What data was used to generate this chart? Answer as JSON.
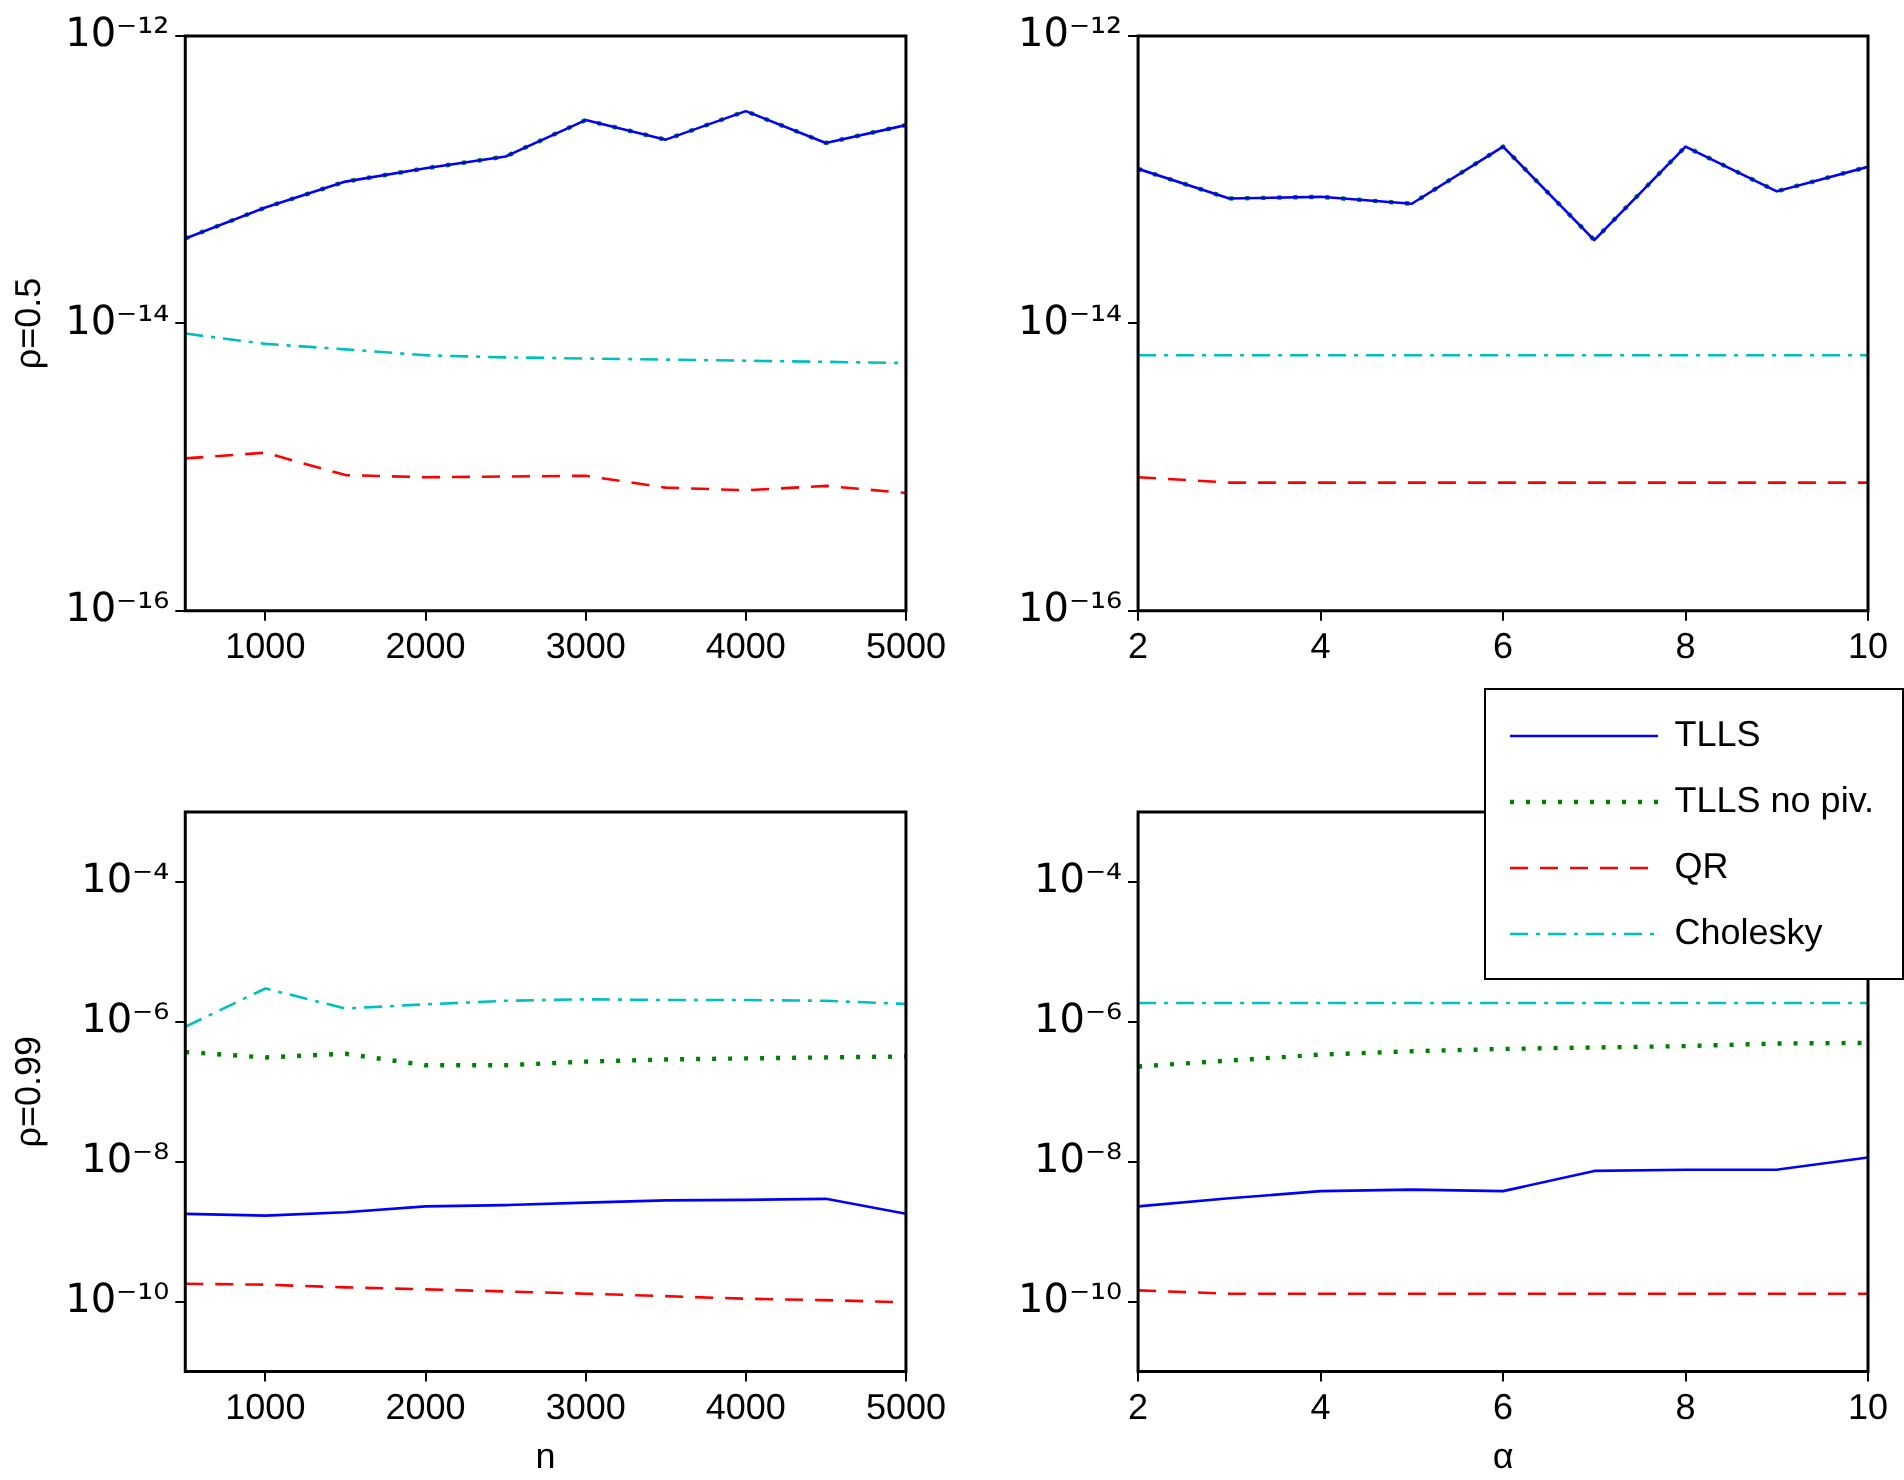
{
  "chart_data": [
    {
      "type": "line",
      "ylabel": "ρ=0.5",
      "log": "y",
      "x": [
        500,
        1000,
        1500,
        2000,
        2500,
        3000,
        3500,
        4000,
        4500,
        5000
      ],
      "xlim": [
        500,
        5000
      ],
      "xticks": [
        1000,
        2000,
        3000,
        4000,
        5000
      ],
      "ylim": [
        1e-16,
        1e-12
      ],
      "yticks": [
        {
          "value": 1e-16,
          "label": "10⁻¹⁶"
        },
        {
          "value": 1e-14,
          "label": "10⁻¹⁴"
        },
        {
          "value": 1e-12,
          "label": "10⁻¹²"
        }
      ],
      "series": [
        {
          "color": "#0000ff",
          "line_style": "solid",
          "values": [
            3.9e-14,
            6.4e-14,
            9.7e-14,
            1.2e-13,
            1.45e-13,
            2.6e-13,
            1.9e-13,
            3e-13,
            1.8e-13,
            2.4e-13
          ]
        },
        {
          "color": "#008000",
          "line_style": "dotted",
          "values": [
            3.9e-14,
            6.4e-14,
            9.7e-14,
            1.2e-13,
            1.45e-13,
            2.6e-13,
            1.9e-13,
            3e-13,
            1.8e-13,
            2.4e-13
          ]
        },
        {
          "color": "#ff0000",
          "line_style": "dashed",
          "values": [
            1.15e-15,
            1.26e-15,
            8.8e-16,
            8.5e-16,
            8.6e-16,
            8.7e-16,
            7.2e-16,
            6.9e-16,
            7.4e-16,
            6.6e-16
          ]
        },
        {
          "color": "#00bfbf",
          "line_style": "dashdot",
          "values": [
            8.5e-15,
            7.2e-15,
            6.6e-15,
            6e-15,
            5.8e-15,
            5.7e-15,
            5.6e-15,
            5.5e-15,
            5.4e-15,
            5.3e-15
          ]
        }
      ]
    },
    {
      "type": "line",
      "log": "y",
      "x": [
        2,
        3,
        4,
        5,
        6,
        7,
        8,
        9,
        10
      ],
      "xlim": [
        2,
        10
      ],
      "xticks": [
        2,
        4,
        6,
        8,
        10
      ],
      "ylim": [
        1e-16,
        1e-12
      ],
      "yticks": [
        {
          "value": 1e-16,
          "label": "10⁻¹⁶"
        },
        {
          "value": 1e-14,
          "label": "10⁻¹⁴"
        },
        {
          "value": 1e-12,
          "label": "10⁻¹²"
        }
      ],
      "series": [
        {
          "color": "#0000ff",
          "line_style": "solid",
          "values": [
            1.19e-13,
            7.4e-14,
            7.6e-14,
            6.8e-14,
            1.7e-13,
            3.8e-14,
            1.7e-13,
            8.3e-14,
            1.23e-13
          ]
        },
        {
          "color": "#008000",
          "line_style": "dotted",
          "values": [
            1.19e-13,
            7.4e-14,
            7.6e-14,
            6.8e-14,
            1.7e-13,
            3.8e-14,
            1.7e-13,
            8.3e-14,
            1.23e-13
          ]
        },
        {
          "color": "#ff0000",
          "line_style": "dashed",
          "values": [
            8.5e-16,
            7.8e-16,
            7.8e-16,
            7.8e-16,
            7.8e-16,
            7.8e-16,
            7.8e-16,
            7.8e-16,
            7.8e-16
          ]
        },
        {
          "color": "#00bfbf",
          "line_style": "dashdot",
          "values": [
            6e-15,
            6e-15,
            6e-15,
            6e-15,
            6e-15,
            6e-15,
            6e-15,
            6e-15,
            6e-15
          ]
        }
      ]
    },
    {
      "type": "line",
      "xlabel": "n",
      "ylabel": "ρ=0.99",
      "log": "y",
      "x": [
        500,
        1000,
        1500,
        2000,
        2500,
        3000,
        3500,
        4000,
        4500,
        5000
      ],
      "xlim": [
        500,
        5000
      ],
      "xticks": [
        1000,
        2000,
        3000,
        4000,
        5000
      ],
      "ylim": [
        1e-11,
        0.001
      ],
      "yticks": [
        {
          "value": 1e-10,
          "label": "10⁻¹⁰"
        },
        {
          "value": 1e-08,
          "label": "10⁻⁸"
        },
        {
          "value": 1e-06,
          "label": "10⁻⁶"
        },
        {
          "value": 0.0001,
          "label": "10⁻⁴"
        }
      ],
      "series": [
        {
          "color": "#0000ff",
          "line_style": "solid",
          "values": [
            1.8e-09,
            1.7e-09,
            1.9e-09,
            2.3e-09,
            2.4e-09,
            2.6e-09,
            2.8e-09,
            2.85e-09,
            2.95e-09,
            1.8e-09
          ]
        },
        {
          "color": "#008000",
          "line_style": "dotted",
          "values": [
            3.7e-07,
            3.1e-07,
            3.5e-07,
            2.4e-07,
            2.4e-07,
            2.7e-07,
            2.9e-07,
            3e-07,
            3.1e-07,
            3.2e-07
          ]
        },
        {
          "color": "#ff0000",
          "line_style": "dashed",
          "values": [
            1.8e-10,
            1.75e-10,
            1.6e-10,
            1.5e-10,
            1.4e-10,
            1.3e-10,
            1.2e-10,
            1.1e-10,
            1.05e-10,
            9.8e-11
          ]
        },
        {
          "color": "#00bfbf",
          "line_style": "dashdot",
          "values": [
            8.5e-07,
            3e-06,
            1.55e-06,
            1.78e-06,
            2e-06,
            2.1e-06,
            2.05e-06,
            2.05e-06,
            2e-06,
            1.8e-06
          ]
        }
      ]
    },
    {
      "type": "line",
      "xlabel": "α",
      "log": "y",
      "legend": "top right",
      "x": [
        2,
        3,
        4,
        5,
        6,
        7,
        8,
        9,
        10
      ],
      "xlim": [
        2,
        10
      ],
      "xticks": [
        2,
        4,
        6,
        8,
        10
      ],
      "ylim": [
        1e-11,
        0.001
      ],
      "yticks": [
        {
          "value": 1e-10,
          "label": "10⁻¹⁰"
        },
        {
          "value": 1e-08,
          "label": "10⁻⁸"
        },
        {
          "value": 1e-06,
          "label": "10⁻⁶"
        },
        {
          "value": 0.0001,
          "label": "10⁻⁴"
        }
      ],
      "series": [
        {
          "name": "TLLS",
          "color": "#0000ff",
          "line_style": "solid",
          "values": [
            2.3e-09,
            3e-09,
            3.8e-09,
            4e-09,
            3.8e-09,
            7.4e-09,
            7.7e-09,
            7.7e-09,
            1.15e-08
          ]
        },
        {
          "name": "TLLS no piv.",
          "color": "#008000",
          "line_style": "dotted",
          "values": [
            2.3e-07,
            2.8e-07,
            3.4e-07,
            3.8e-07,
            4.1e-07,
            4.3e-07,
            4.5e-07,
            4.9e-07,
            5e-07
          ]
        },
        {
          "name": "QR",
          "color": "#ff0000",
          "line_style": "dashed",
          "values": [
            1.45e-10,
            1.3e-10,
            1.3e-10,
            1.3e-10,
            1.3e-10,
            1.3e-10,
            1.3e-10,
            1.3e-10,
            1.3e-10
          ]
        },
        {
          "name": "Cholesky",
          "color": "#00bfbf",
          "line_style": "dashdot",
          "values": [
            1.86e-06,
            1.86e-06,
            1.86e-06,
            1.86e-06,
            1.86e-06,
            1.86e-06,
            1.86e-06,
            1.86e-06,
            1.86e-06
          ]
        }
      ]
    }
  ]
}
